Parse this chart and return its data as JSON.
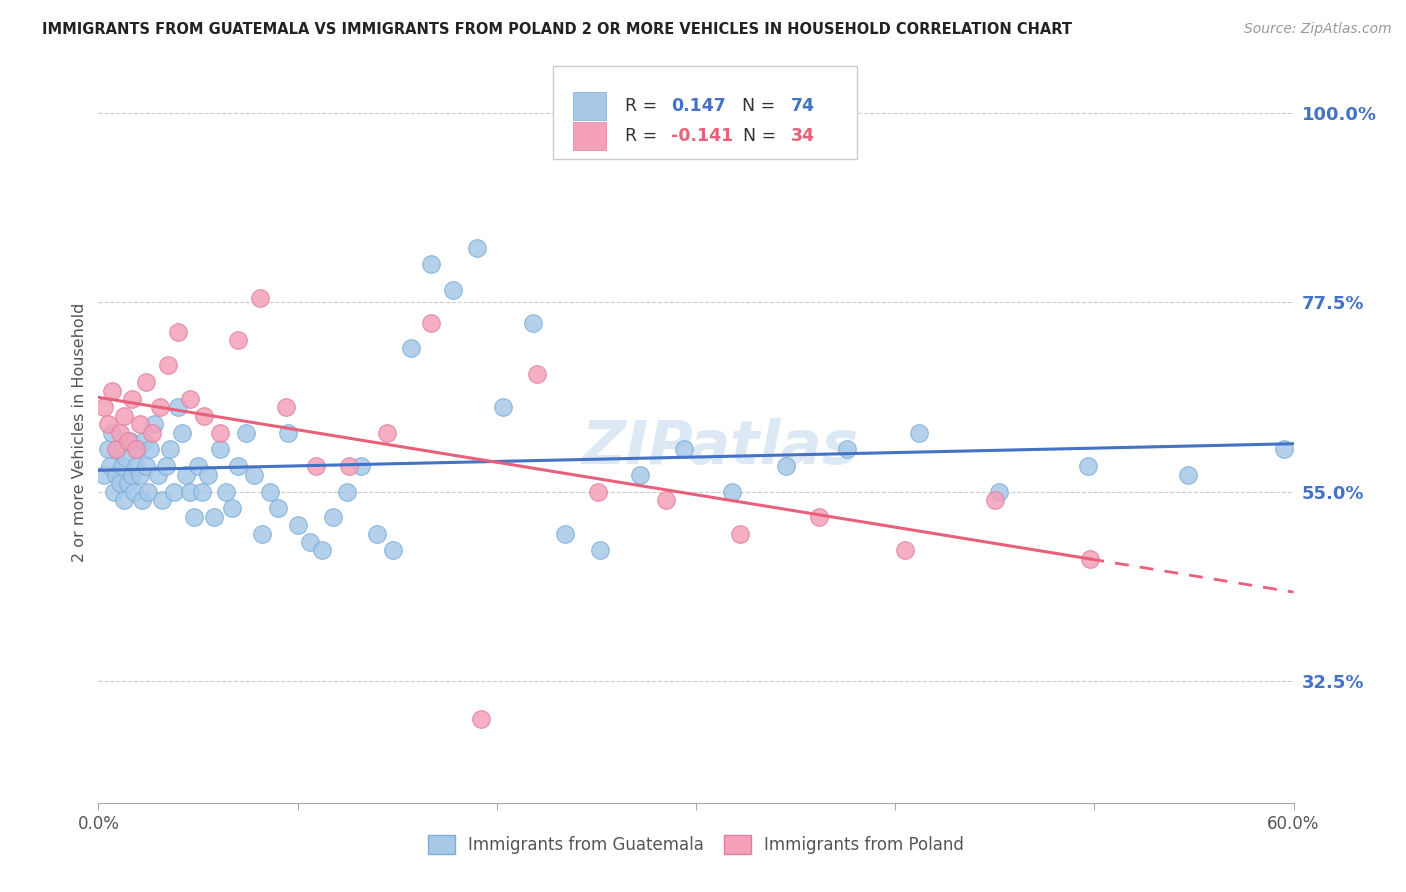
{
  "title": "IMMIGRANTS FROM GUATEMALA VS IMMIGRANTS FROM POLAND 2 OR MORE VEHICLES IN HOUSEHOLD CORRELATION CHART",
  "source": "Source: ZipAtlas.com",
  "ylabel": "2 or more Vehicles in Household",
  "ytick_labels": [
    "100.0%",
    "77.5%",
    "55.0%",
    "32.5%"
  ],
  "ytick_values": [
    1.0,
    0.775,
    0.55,
    0.325
  ],
  "xlim": [
    0.0,
    0.6
  ],
  "ylim": [
    0.18,
    1.06
  ],
  "r_guatemala": 0.147,
  "n_guatemala": 74,
  "r_poland": -0.141,
  "n_poland": 34,
  "color_guatemala": "#a8c8e8",
  "color_poland": "#f4a0b8",
  "color_line_guatemala": "#4472c4",
  "color_line_poland": "#e8607a",
  "watermark": "ZIPatlas",
  "guatemala_x": [
    0.003,
    0.005,
    0.006,
    0.007,
    0.008,
    0.009,
    0.01,
    0.011,
    0.012,
    0.013,
    0.014,
    0.015,
    0.016,
    0.017,
    0.018,
    0.019,
    0.02,
    0.021,
    0.022,
    0.023,
    0.024,
    0.025,
    0.026,
    0.028,
    0.03,
    0.032,
    0.034,
    0.036,
    0.038,
    0.04,
    0.042,
    0.044,
    0.046,
    0.048,
    0.05,
    0.052,
    0.055,
    0.058,
    0.061,
    0.064,
    0.067,
    0.07,
    0.074,
    0.078,
    0.082,
    0.086,
    0.09,
    0.095,
    0.1,
    0.106,
    0.112,
    0.118,
    0.125,
    0.132,
    0.14,
    0.148,
    0.157,
    0.167,
    0.178,
    0.19,
    0.203,
    0.218,
    0.234,
    0.252,
    0.272,
    0.294,
    0.318,
    0.345,
    0.376,
    0.412,
    0.452,
    0.497,
    0.547,
    0.595
  ],
  "guatemala_y": [
    0.57,
    0.6,
    0.58,
    0.62,
    0.55,
    0.57,
    0.6,
    0.56,
    0.58,
    0.54,
    0.59,
    0.56,
    0.61,
    0.57,
    0.55,
    0.58,
    0.6,
    0.57,
    0.54,
    0.61,
    0.58,
    0.55,
    0.6,
    0.63,
    0.57,
    0.54,
    0.58,
    0.6,
    0.55,
    0.65,
    0.62,
    0.57,
    0.55,
    0.52,
    0.58,
    0.55,
    0.57,
    0.52,
    0.6,
    0.55,
    0.53,
    0.58,
    0.62,
    0.57,
    0.5,
    0.55,
    0.53,
    0.62,
    0.51,
    0.49,
    0.48,
    0.52,
    0.55,
    0.58,
    0.5,
    0.48,
    0.72,
    0.82,
    0.79,
    0.84,
    0.65,
    0.75,
    0.5,
    0.48,
    0.57,
    0.6,
    0.55,
    0.58,
    0.6,
    0.62,
    0.55,
    0.58,
    0.57,
    0.6
  ],
  "poland_x": [
    0.003,
    0.005,
    0.007,
    0.009,
    0.011,
    0.013,
    0.015,
    0.017,
    0.019,
    0.021,
    0.024,
    0.027,
    0.031,
    0.035,
    0.04,
    0.046,
    0.053,
    0.061,
    0.07,
    0.081,
    0.094,
    0.109,
    0.126,
    0.145,
    0.167,
    0.192,
    0.22,
    0.251,
    0.285,
    0.322,
    0.362,
    0.405,
    0.45,
    0.498
  ],
  "poland_y": [
    0.65,
    0.63,
    0.67,
    0.6,
    0.62,
    0.64,
    0.61,
    0.66,
    0.6,
    0.63,
    0.68,
    0.62,
    0.65,
    0.7,
    0.74,
    0.66,
    0.64,
    0.62,
    0.73,
    0.78,
    0.65,
    0.58,
    0.58,
    0.62,
    0.75,
    0.28,
    0.69,
    0.55,
    0.54,
    0.5,
    0.52,
    0.48,
    0.54,
    0.47
  ],
  "legend_r1": "R = ",
  "legend_v1": "0.147",
  "legend_n1": "N = ",
  "legend_nv1": "74",
  "legend_r2": "R = ",
  "legend_v2": "-0.141",
  "legend_n2": "N = ",
  "legend_nv2": "34",
  "bottom_label1": "Immigrants from Guatemala",
  "bottom_label2": "Immigrants from Poland"
}
